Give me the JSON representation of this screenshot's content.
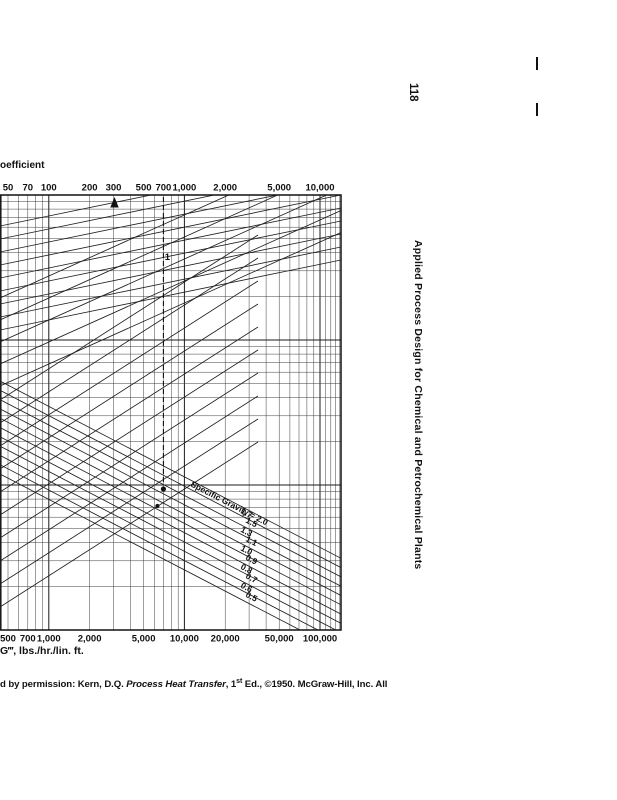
{
  "page": {
    "number": "118",
    "running_title": "Applied Process Design for Chemical and Petrochemical Plants",
    "caption": {
      "prefix": "d by permission: Kern, D.Q. ",
      "italic": "Process Heat Transfer",
      "mid": ", 1",
      "sup": "st",
      "suffix": " Ed., ©1950. McGraw-Hill, Inc. All"
    }
  },
  "chart_data": {
    "type": "line",
    "description": "Scanned log-log design chart (left portion cropped by page edge): transfer coefficient vs mass flow per linear foot with specific-gravity parameter lines",
    "title_partial": "oefficient",
    "x_axis_top": {
      "scale": "log",
      "ticks": [
        {
          "v": 50,
          "label": "50"
        },
        {
          "v": 70,
          "label": "70"
        },
        {
          "v": 100,
          "label": "100"
        },
        {
          "v": 200,
          "label": "200"
        },
        {
          "v": 300,
          "label": "300"
        },
        {
          "v": 500,
          "label": "500"
        },
        {
          "v": 700,
          "label": "700"
        },
        {
          "v": 1000,
          "label": "1,000"
        },
        {
          "v": 2000,
          "label": "2,000"
        },
        {
          "v": 5000,
          "label": "5,000"
        },
        {
          "v": 10000,
          "label": "10,000"
        }
      ]
    },
    "x_axis_bottom": {
      "scale": "log",
      "label": "G‴, lbs./hr./lin. ft.",
      "ticks": [
        {
          "v": 500,
          "label": "500"
        },
        {
          "v": 700,
          "label": "700"
        },
        {
          "v": 1000,
          "label": "1,000"
        },
        {
          "v": 2000,
          "label": "2,000"
        },
        {
          "v": 5000,
          "label": "5,000"
        },
        {
          "v": 10000,
          "label": "10,000"
        },
        {
          "v": 20000,
          "label": "20,000"
        },
        {
          "v": 50000,
          "label": "50,000"
        },
        {
          "v": 100000,
          "label": "100,000"
        }
      ]
    },
    "y_axis": {
      "visible": false,
      "scale": "log",
      "note": "axis labels cropped off left page edge"
    },
    "specific_gravity": {
      "label_prefix": "Specific Gravity = ",
      "values": [
        "2.0",
        "1.7",
        "1.5",
        "1.3",
        "1.1",
        "1.0",
        "0.9",
        "0.8",
        "0.7",
        "0.6",
        "0.5"
      ]
    },
    "annotation": {
      "marker_label": "1",
      "arrow_tick_top": 300,
      "reference_line_tick_top": 700
    },
    "grid": "log-log dense"
  }
}
